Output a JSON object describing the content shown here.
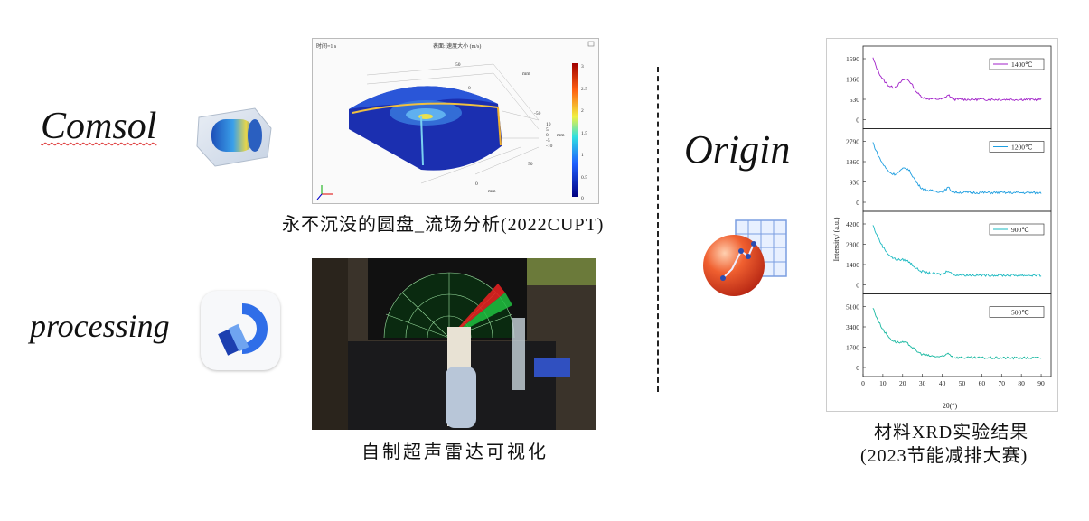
{
  "left": {
    "comsol": {
      "label": "Comsol",
      "caption": "永不沉没的圆盘_流场分析(2022CUPT)",
      "sim": {
        "header_left": "时间=1 s",
        "header_center": "表面: 速度大小 (m/s)",
        "colorbar_ticks": [
          "3",
          "2.5",
          "2",
          "1.5",
          "1",
          "0.5",
          "0"
        ],
        "axis_labels": [
          "50",
          "0",
          "mm",
          "-50",
          "10",
          "5",
          "0",
          "-5",
          "-10",
          "mm",
          "50",
          "0",
          "mm"
        ]
      }
    },
    "processing": {
      "label": "processing",
      "caption": "自制超声雷达可视化"
    }
  },
  "right": {
    "origin_label": "Origin",
    "caption_line1": "材料XRD实验结果",
    "caption_line2": "(2023节能减排大赛)",
    "xrd": {
      "y_title": "Intensity/ (a.u.)",
      "x_title": "2θ(°)",
      "x_ticks": [
        "0",
        "10",
        "20",
        "30",
        "40",
        "50",
        "60",
        "70",
        "80",
        "90"
      ],
      "panels": [
        {
          "legend": "1400℃",
          "color": "#a020c8",
          "y_ticks": [
            "1590",
            "1060",
            "530",
            "0"
          ]
        },
        {
          "legend": "1200℃",
          "color": "#1e9ee0",
          "y_ticks": [
            "2790",
            "1860",
            "930",
            "0"
          ]
        },
        {
          "legend": "900℃",
          "color": "#18b8c0",
          "y_ticks": [
            "4200",
            "2800",
            "1400",
            "0"
          ]
        },
        {
          "legend": "500℃",
          "color": "#18b8a0",
          "y_ticks": [
            "5100",
            "3400",
            "1700",
            "0"
          ]
        }
      ]
    }
  }
}
